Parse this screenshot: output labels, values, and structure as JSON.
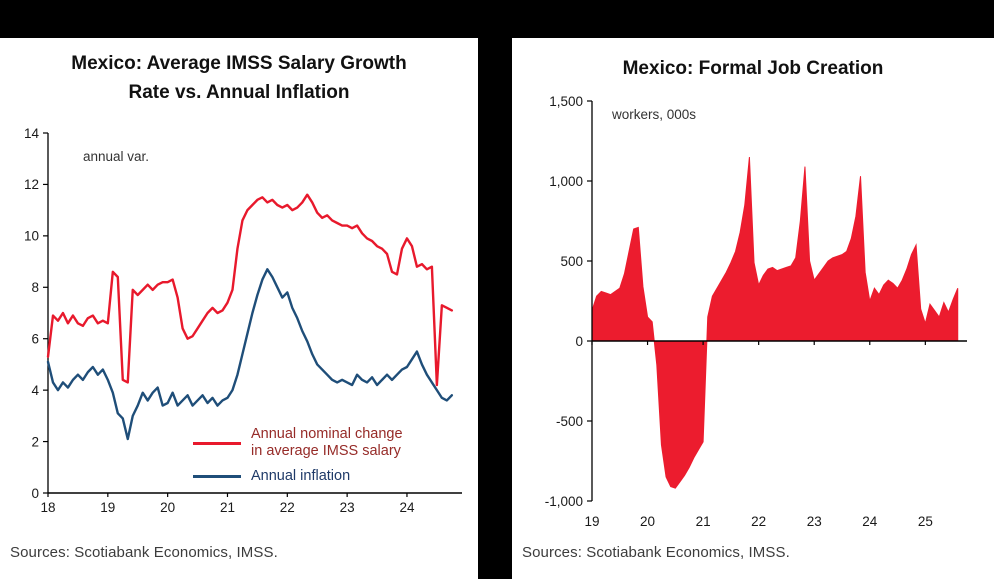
{
  "header_bar": {
    "color": "#000000"
  },
  "left_panel": {
    "title_line1": "Mexico: Average IMSS Salary Growth",
    "title_line2": "Rate vs. Annual Inflation",
    "annotation": "annual var.",
    "source": "Sources: Scotiabank Economics, IMSS.",
    "legend": {
      "item1_line1": "Annual nominal change",
      "item1_line2": "in average IMSS salary",
      "item1_text_color": "#962b28",
      "item2_line1": "Annual inflation",
      "item2_text_color": "#1f3a68"
    }
  },
  "right_panel": {
    "title": "Mexico: Formal Job Creation",
    "annotation": "workers, 000s",
    "source": "Sources: Scotiabank Economics, IMSS."
  },
  "chart_data": [
    {
      "type": "line",
      "title": "Mexico: Average IMSS Salary Growth Rate vs. Annual Inflation",
      "annotation": "annual var.",
      "xlabel": "",
      "ylabel": "",
      "xlim": [
        2018,
        2024.92
      ],
      "ylim": [
        0,
        14
      ],
      "grid": false,
      "legend_position": "inside-bottom-right",
      "yticks": [
        0,
        2,
        4,
        6,
        8,
        10,
        12,
        14
      ],
      "ytick_labels": [
        "0",
        "2",
        "4",
        "6",
        "8",
        "10",
        "12",
        "14"
      ],
      "xticks": [
        2018,
        2019,
        2020,
        2021,
        2022,
        2023,
        2024
      ],
      "xtick_labels": [
        "18",
        "19",
        "20",
        "21",
        "22",
        "23",
        "24"
      ],
      "x_start": 2018.0,
      "x_step_years": 0.0833333,
      "series": [
        {
          "name": "Annual nominal change in average IMSS salary",
          "color": "#e8192c",
          "values": [
            5.3,
            6.9,
            6.7,
            7.0,
            6.6,
            6.9,
            6.6,
            6.5,
            6.8,
            6.9,
            6.6,
            6.7,
            6.6,
            8.6,
            8.4,
            4.4,
            4.3,
            7.9,
            7.7,
            7.9,
            8.1,
            7.9,
            8.1,
            8.2,
            8.2,
            8.3,
            7.6,
            6.4,
            6.0,
            6.1,
            6.4,
            6.7,
            7.0,
            7.2,
            7.0,
            7.1,
            7.4,
            7.9,
            9.5,
            10.6,
            11.0,
            11.2,
            11.4,
            11.5,
            11.3,
            11.4,
            11.2,
            11.1,
            11.2,
            11.0,
            11.1,
            11.3,
            11.6,
            11.3,
            10.9,
            10.7,
            10.8,
            10.6,
            10.5,
            10.4,
            10.4,
            10.3,
            10.4,
            10.1,
            9.9,
            9.8,
            9.6,
            9.5,
            9.3,
            8.6,
            8.5,
            9.5,
            9.9,
            9.6,
            8.8,
            8.9,
            8.7,
            8.8,
            4.2,
            7.3,
            7.2,
            7.1
          ]
        },
        {
          "name": "Annual inflation",
          "color": "#1f4e79",
          "values": [
            5.1,
            4.3,
            4.0,
            4.3,
            4.1,
            4.4,
            4.6,
            4.4,
            4.7,
            4.9,
            4.6,
            4.8,
            4.4,
            3.9,
            3.1,
            2.9,
            2.1,
            3.0,
            3.4,
            3.9,
            3.6,
            3.9,
            4.1,
            3.4,
            3.5,
            3.9,
            3.4,
            3.6,
            3.8,
            3.4,
            3.6,
            3.8,
            3.5,
            3.7,
            3.4,
            3.6,
            3.7,
            4.0,
            4.6,
            5.4,
            6.2,
            7.0,
            7.7,
            8.3,
            8.7,
            8.4,
            8.0,
            7.6,
            7.8,
            7.2,
            6.8,
            6.3,
            5.9,
            5.4,
            5.0,
            4.8,
            4.6,
            4.4,
            4.3,
            4.4,
            4.3,
            4.2,
            4.6,
            4.4,
            4.3,
            4.5,
            4.2,
            4.4,
            4.6,
            4.4,
            4.6,
            4.8,
            4.9,
            5.2,
            5.5,
            5.0,
            4.6,
            4.3,
            4.0,
            3.7,
            3.6,
            3.8
          ]
        }
      ]
    },
    {
      "type": "area",
      "title": "Mexico: Formal Job Creation",
      "annotation": "workers, 000s",
      "xlabel": "",
      "ylabel": "workers, 000s",
      "xlim": [
        2019,
        2025.75
      ],
      "ylim": [
        -1000,
        1500
      ],
      "grid": false,
      "legend_position": "none",
      "yticks": [
        -1000,
        -500,
        0,
        500,
        1000,
        1500
      ],
      "ytick_labels": [
        "-1,000",
        "-500",
        "0",
        "500",
        "1,000",
        "1,500"
      ],
      "xticks": [
        2019,
        2020,
        2021,
        2022,
        2023,
        2024,
        2025
      ],
      "xtick_labels": [
        "19",
        "20",
        "21",
        "22",
        "23",
        "24",
        "25"
      ],
      "x_start": 2019.0,
      "x_step_years": 0.0833333,
      "series": [
        {
          "name": "Formal job creation",
          "color": "#ec1c2e",
          "values": [
            190,
            280,
            310,
            300,
            290,
            310,
            330,
            420,
            560,
            700,
            710,
            340,
            150,
            120,
            -150,
            -650,
            -850,
            -910,
            -920,
            -880,
            -840,
            -790,
            -730,
            -680,
            -630,
            150,
            280,
            330,
            380,
            430,
            490,
            560,
            680,
            850,
            1150,
            490,
            350,
            410,
            450,
            460,
            440,
            450,
            460,
            470,
            520,
            750,
            1090,
            500,
            380,
            420,
            460,
            500,
            520,
            530,
            540,
            560,
            640,
            780,
            1030,
            430,
            250,
            330,
            290,
            350,
            380,
            360,
            330,
            380,
            450,
            540,
            600,
            200,
            110,
            230,
            190,
            150,
            240,
            180,
            260,
            330
          ]
        }
      ]
    }
  ]
}
